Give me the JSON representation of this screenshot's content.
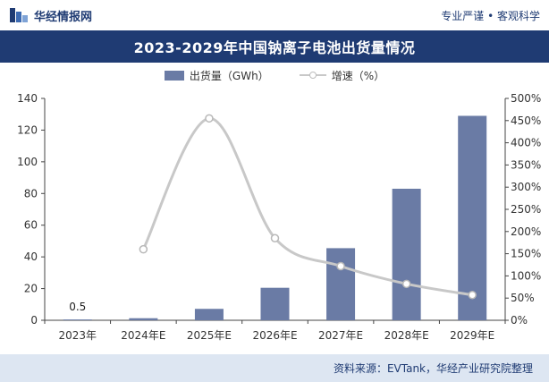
{
  "header": {
    "brand": "华经情报网",
    "tagline": "专业严谨 • 客观科学"
  },
  "title": "2023-2029年中国钠离子电池出货量情况",
  "legend": {
    "bar_label": "出货量（GWh）",
    "line_label": "增速（%）"
  },
  "colors": {
    "bar": "#6a7ba5",
    "line": "#c8c8c8",
    "title_bg": "#1f3b73",
    "footer_bg": "#dde6f2"
  },
  "chart_data": {
    "type": "bar",
    "categories": [
      "2023年",
      "2024年E",
      "2025年E",
      "2026年E",
      "2027年E",
      "2028年E",
      "2029年E"
    ],
    "series": [
      {
        "name": "出货量（GWh）",
        "type": "bar",
        "axis": "left",
        "values": [
          0.5,
          1.3,
          7.2,
          20.5,
          45.5,
          83,
          129
        ]
      },
      {
        "name": "增速（%）",
        "type": "line",
        "axis": "right",
        "values": [
          null,
          160,
          455,
          185,
          122,
          82,
          57
        ]
      }
    ],
    "data_labels": [
      {
        "category": "2023年",
        "text": "0.5"
      }
    ],
    "y_left": {
      "min": 0,
      "max": 140,
      "ticks": [
        "0",
        "20",
        "40",
        "60",
        "80",
        "100",
        "120",
        "140"
      ]
    },
    "y_right": {
      "min": 0,
      "max": 500,
      "ticks": [
        "0%",
        "50%",
        "100%",
        "150%",
        "200%",
        "250%",
        "300%",
        "350%",
        "400%",
        "450%",
        "500%"
      ]
    },
    "grid": false,
    "legend_position": "top"
  },
  "footer": {
    "source": "资料来源：EVTank，华经产业研究院整理"
  }
}
